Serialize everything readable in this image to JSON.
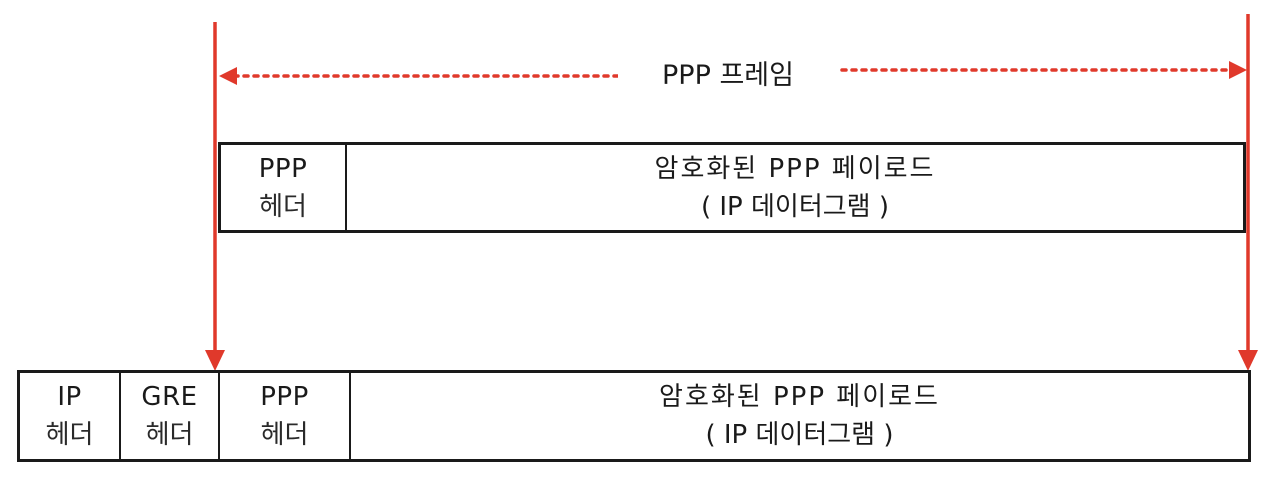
{
  "frame_label": "PPP 프레임",
  "colors": {
    "arrow": "#e0392b",
    "border": "#1a1a1a"
  },
  "top_row": {
    "ppp_header": {
      "line1": "PPP",
      "line2": "헤더"
    },
    "payload": {
      "line1": "암호화된  PPP  페이로드",
      "line2": "( IP 데이터그램 )"
    }
  },
  "bottom_row": {
    "ip_header": {
      "line1": "IP",
      "line2": "헤더"
    },
    "gre_header": {
      "line1": "GRE",
      "line2": "헤더"
    },
    "ppp_header": {
      "line1": "PPP",
      "line2": "헤더"
    },
    "payload": {
      "line1": "암호화된  PPP  페이로드",
      "line2": "( IP 데이터그램 )"
    }
  }
}
